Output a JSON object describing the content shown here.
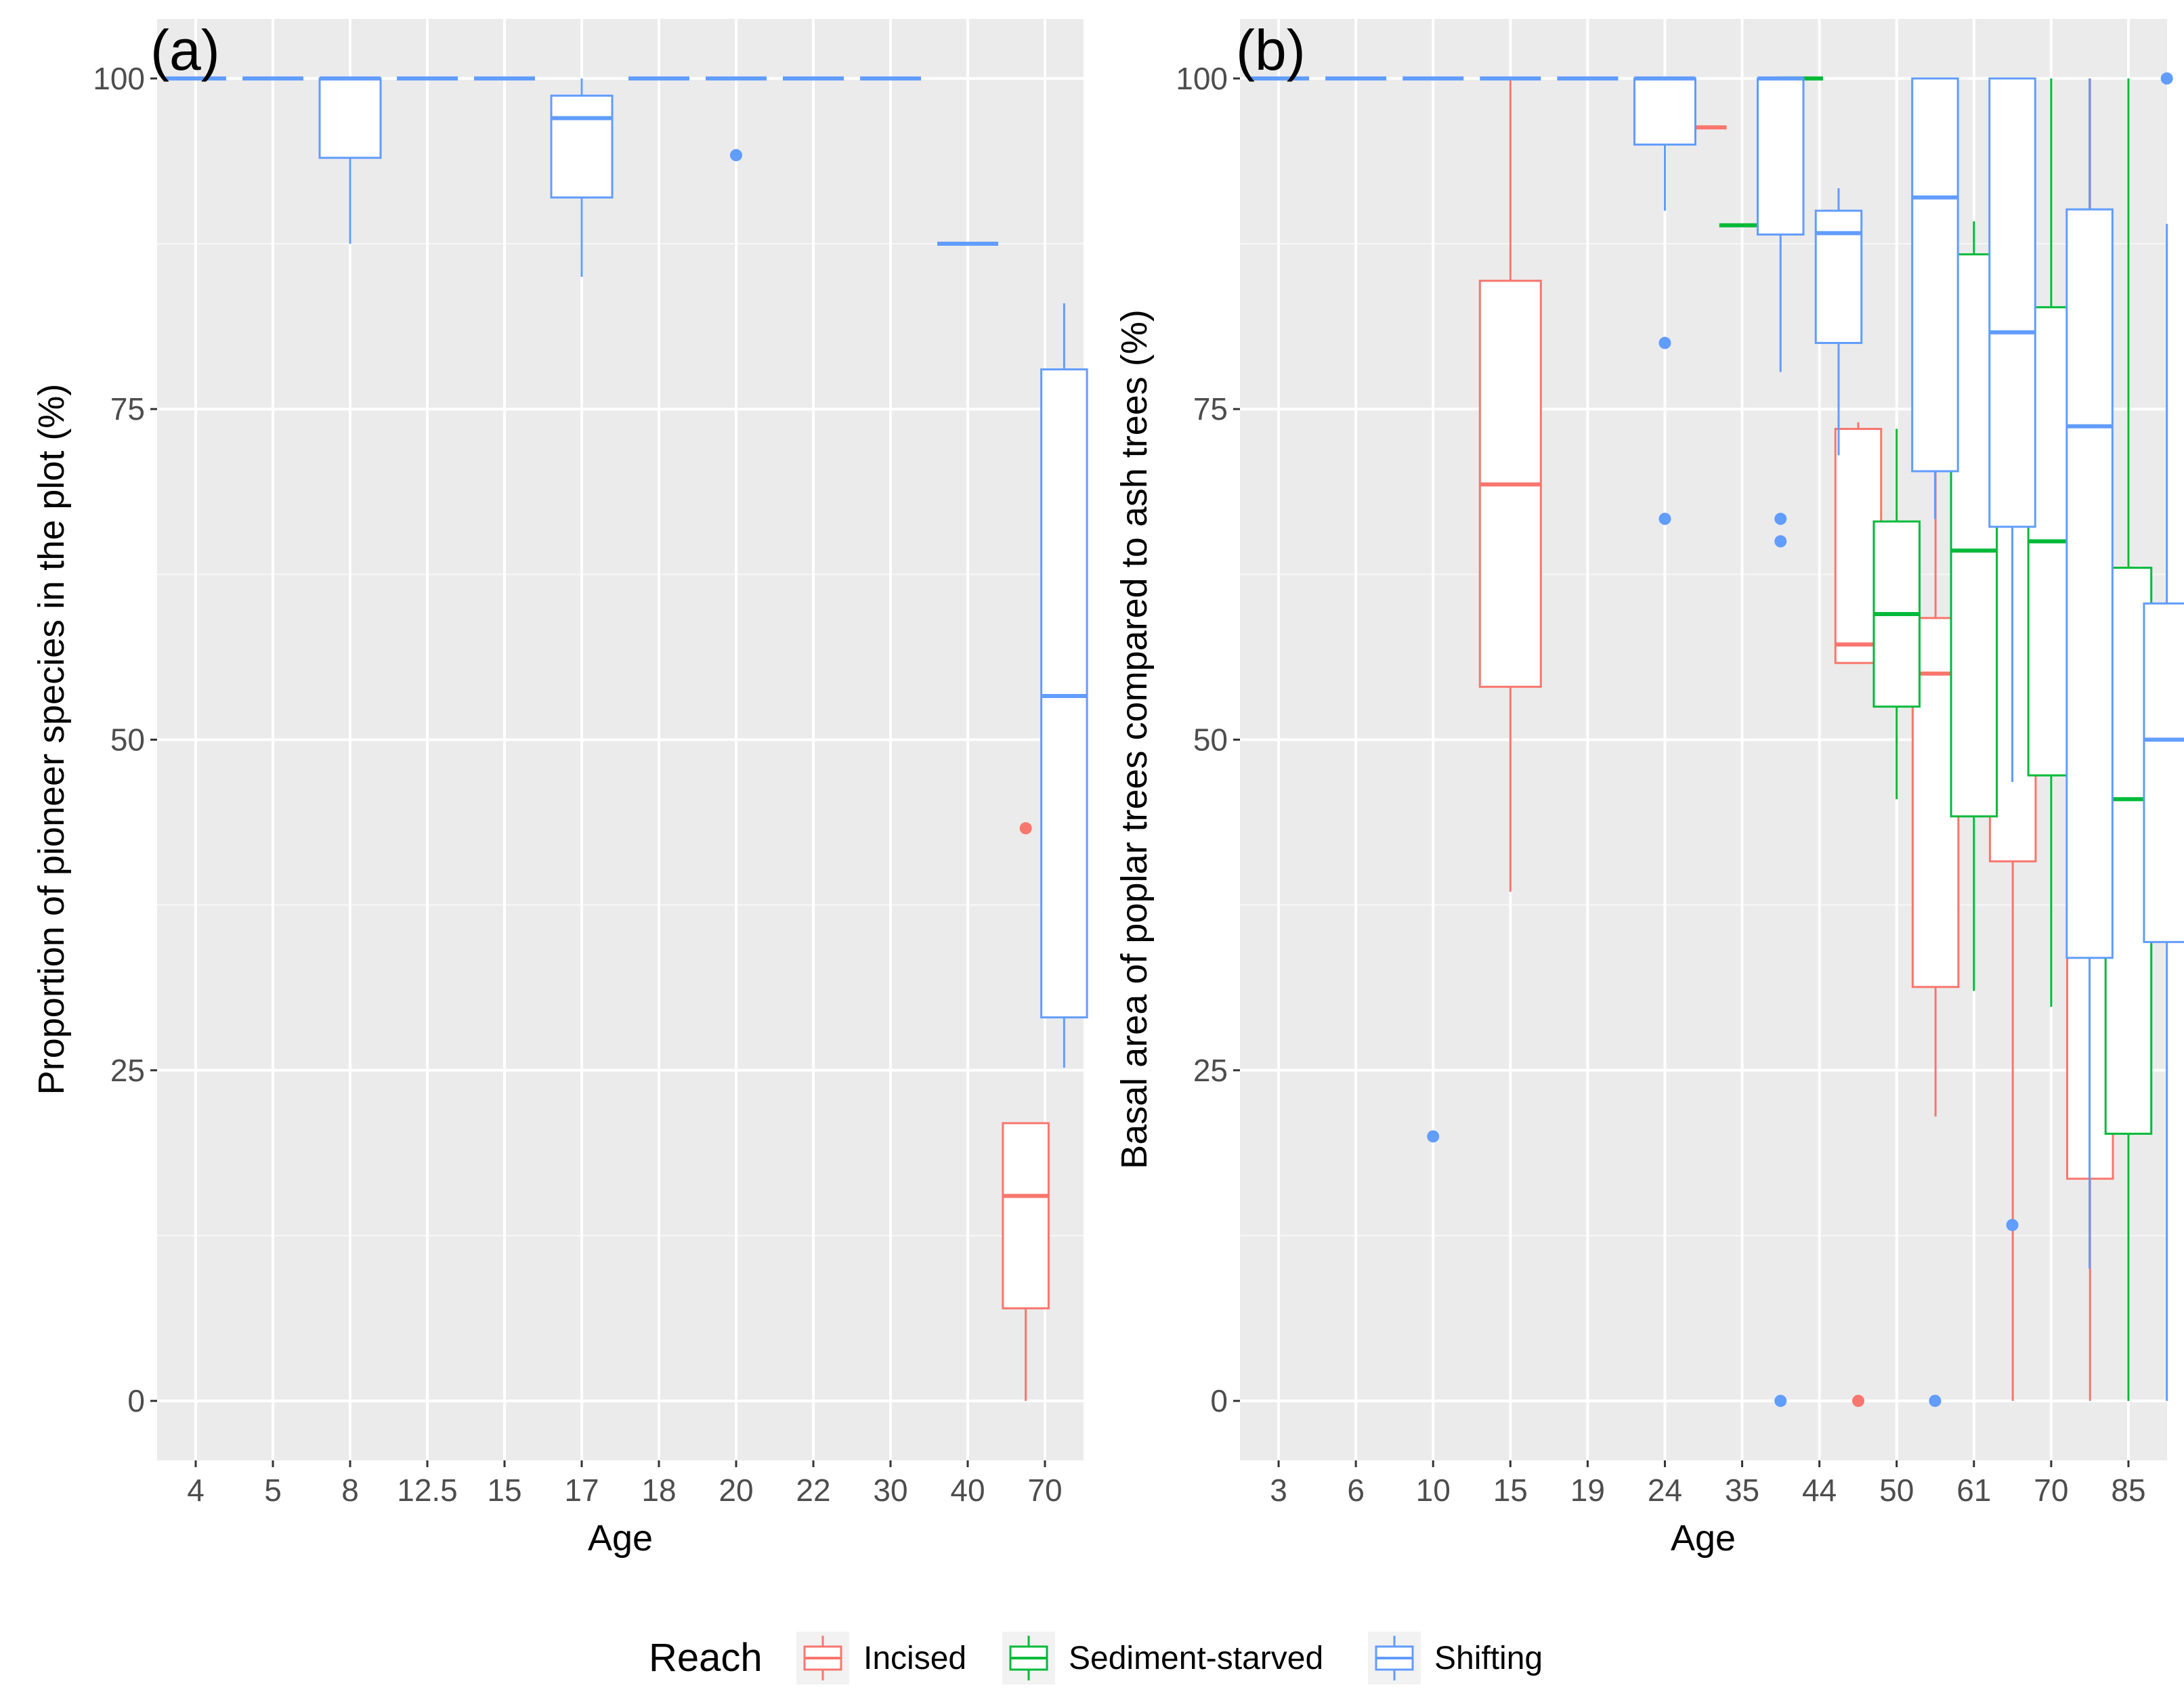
{
  "figure": {
    "legend_title": "Reach",
    "legend_items": [
      {
        "label": "Incised",
        "color": "#F8766D"
      },
      {
        "label": "Sediment-starved",
        "color": "#00BA38"
      },
      {
        "label": "Shifting",
        "color": "#619CFF"
      }
    ]
  },
  "chart_data": [
    {
      "type": "boxplot",
      "panel_label": "(a)",
      "xlabel": "Age",
      "ylabel": "Proportion of pioneer species in the plot (%)",
      "categories": [
        "4",
        "5",
        "8",
        "12.5",
        "15",
        "17",
        "18",
        "20",
        "22",
        "30",
        "40",
        "70"
      ],
      "ylim": [
        -4.5,
        104.5
      ],
      "yticks": [
        0,
        25,
        50,
        75,
        100
      ],
      "series": [
        {
          "name": "Incised",
          "boxes": [
            {
              "category": "70",
              "slot": 0,
              "n": 2,
              "lower": 0,
              "q1": 7,
              "median": 15.5,
              "q3": 21,
              "upper": 21,
              "outliers": [
                43.3
              ]
            }
          ]
        },
        {
          "name": "Sediment-starved",
          "boxes": []
        },
        {
          "name": "Shifting",
          "boxes": [
            {
              "category": "4",
              "slot": 0,
              "n": 1,
              "lower": 100,
              "q1": 100,
              "median": 100,
              "q3": 100,
              "upper": 100,
              "outliers": []
            },
            {
              "category": "5",
              "slot": 0,
              "n": 1,
              "lower": 100,
              "q1": 100,
              "median": 100,
              "q3": 100,
              "upper": 100,
              "outliers": []
            },
            {
              "category": "8",
              "slot": 0,
              "n": 1,
              "lower": 87.5,
              "q1": 94,
              "median": 100,
              "q3": 100,
              "upper": 100,
              "outliers": []
            },
            {
              "category": "12.5",
              "slot": 0,
              "n": 1,
              "lower": 100,
              "q1": 100,
              "median": 100,
              "q3": 100,
              "upper": 100,
              "outliers": []
            },
            {
              "category": "15",
              "slot": 0,
              "n": 1,
              "lower": 100,
              "q1": 100,
              "median": 100,
              "q3": 100,
              "upper": 100,
              "outliers": []
            },
            {
              "category": "17",
              "slot": 0,
              "n": 1,
              "lower": 85,
              "q1": 91,
              "median": 97,
              "q3": 98.7,
              "upper": 100,
              "outliers": []
            },
            {
              "category": "18",
              "slot": 0,
              "n": 1,
              "lower": 100,
              "q1": 100,
              "median": 100,
              "q3": 100,
              "upper": 100,
              "outliers": []
            },
            {
              "category": "20",
              "slot": 0,
              "n": 1,
              "lower": 100,
              "q1": 100,
              "median": 100,
              "q3": 100,
              "upper": 100,
              "outliers": [
                94.2
              ]
            },
            {
              "category": "22",
              "slot": 0,
              "n": 1,
              "lower": 100,
              "q1": 100,
              "median": 100,
              "q3": 100,
              "upper": 100,
              "outliers": []
            },
            {
              "category": "30",
              "slot": 0,
              "n": 1,
              "lower": 100,
              "q1": 100,
              "median": 100,
              "q3": 100,
              "upper": 100,
              "outliers": []
            },
            {
              "category": "40",
              "slot": 0,
              "n": 1,
              "lower": 87.5,
              "q1": 87.5,
              "median": 87.5,
              "q3": 87.5,
              "upper": 87.5,
              "outliers": []
            },
            {
              "category": "70",
              "slot": 1,
              "n": 2,
              "lower": 25.2,
              "q1": 29,
              "median": 53.3,
              "q3": 78,
              "upper": 83,
              "outliers": []
            }
          ]
        }
      ]
    },
    {
      "type": "boxplot",
      "panel_label": "(b)",
      "xlabel": "Age",
      "ylabel": "Basal area of poplar trees compared to ash trees (%)",
      "categories": [
        "3",
        "6",
        "10",
        "15",
        "19",
        "24",
        "35",
        "44",
        "50",
        "61",
        "70",
        "85"
      ],
      "ylim": [
        -4.5,
        104.5
      ],
      "yticks": [
        0,
        25,
        50,
        75,
        100
      ],
      "series": [
        {
          "name": "Incised",
          "boxes": [
            {
              "category": "15",
              "slot": 0,
              "n": 1,
              "lower": 38.5,
              "q1": 54,
              "median": 69.3,
              "q3": 84.7,
              "upper": 100,
              "outliers": []
            },
            {
              "category": "35",
              "slot": 0,
              "n": 3,
              "lower": 96.3,
              "q1": 96.3,
              "median": 96.3,
              "q3": 96.3,
              "upper": 96.3,
              "outliers": []
            },
            {
              "category": "50",
              "slot": 0,
              "n": 3,
              "lower": 55.8,
              "q1": 55.8,
              "median": 57.2,
              "q3": 73.5,
              "upper": 74,
              "outliers": [
                0
              ]
            },
            {
              "category": "61",
              "slot": 0,
              "n": 3,
              "lower": 21.5,
              "q1": 31.3,
              "median": 55,
              "q3": 59.2,
              "upper": 77,
              "outliers": []
            },
            {
              "category": "70",
              "slot": 0,
              "n": 3,
              "lower": 0,
              "q1": 40.8,
              "median": 81.2,
              "q3": 82.5,
              "upper": 83.5,
              "outliers": []
            },
            {
              "category": "85",
              "slot": 0,
              "n": 3,
              "lower": 0,
              "q1": 16.8,
              "median": 40.5,
              "q3": 60,
              "upper": 100,
              "outliers": []
            }
          ]
        },
        {
          "name": "Sediment-starved",
          "boxes": [
            {
              "category": "35",
              "slot": 1,
              "n": 3,
              "lower": 88.9,
              "q1": 88.9,
              "median": 88.9,
              "q3": 88.9,
              "upper": 88.9,
              "outliers": []
            },
            {
              "category": "44",
              "slot": 0,
              "n": 2,
              "lower": 100,
              "q1": 100,
              "median": 100,
              "q3": 100,
              "upper": 100,
              "outliers": []
            },
            {
              "category": "50",
              "slot": 1,
              "n": 3,
              "lower": 45.5,
              "q1": 52.5,
              "median": 59.5,
              "q3": 66.5,
              "upper": 73.5,
              "outliers": []
            },
            {
              "category": "61",
              "slot": 1,
              "n": 3,
              "lower": 31,
              "q1": 44.2,
              "median": 64.3,
              "q3": 86.7,
              "upper": 89.2,
              "outliers": []
            },
            {
              "category": "70",
              "slot": 1,
              "n": 3,
              "lower": 29.8,
              "q1": 47.3,
              "median": 65,
              "q3": 82.7,
              "upper": 100,
              "outliers": []
            },
            {
              "category": "85",
              "slot": 1,
              "n": 3,
              "lower": 0,
              "q1": 20.2,
              "median": 45.5,
              "q3": 63,
              "upper": 100,
              "outliers": []
            }
          ]
        },
        {
          "name": "Shifting",
          "boxes": [
            {
              "category": "3",
              "slot": 0,
              "n": 1,
              "lower": 100,
              "q1": 100,
              "median": 100,
              "q3": 100,
              "upper": 100,
              "outliers": []
            },
            {
              "category": "6",
              "slot": 0,
              "n": 1,
              "lower": 100,
              "q1": 100,
              "median": 100,
              "q3": 100,
              "upper": 100,
              "outliers": []
            },
            {
              "category": "10",
              "slot": 0,
              "n": 1,
              "lower": 100,
              "q1": 100,
              "median": 100,
              "q3": 100,
              "upper": 100,
              "outliers": [
                20
              ]
            },
            {
              "category": "15",
              "slot": 0,
              "n": 1,
              "lower": 100,
              "q1": 100,
              "median": 100,
              "q3": 100,
              "upper": 100,
              "outliers": []
            },
            {
              "category": "19",
              "slot": 0,
              "n": 1,
              "lower": 100,
              "q1": 100,
              "median": 100,
              "q3": 100,
              "upper": 100,
              "outliers": []
            },
            {
              "category": "24",
              "slot": 0,
              "n": 1,
              "lower": 90,
              "q1": 95,
              "median": 100,
              "q3": 100,
              "upper": 100,
              "outliers": [
                80,
                66.7
              ]
            },
            {
              "category": "35",
              "slot": 2,
              "n": 3,
              "lower": 77.8,
              "q1": 88.2,
              "median": 100,
              "q3": 100,
              "upper": 100,
              "outliers": [
                66.7,
                65,
                0
              ]
            },
            {
              "category": "44",
              "slot": 1,
              "n": 2,
              "lower": 71.5,
              "q1": 80,
              "median": 88.3,
              "q3": 90,
              "upper": 91.7,
              "outliers": []
            },
            {
              "category": "50",
              "slot": 2,
              "n": 3,
              "lower": 66.7,
              "q1": 70.3,
              "median": 91,
              "q3": 100,
              "upper": 100,
              "outliers": [
                0
              ]
            },
            {
              "category": "61",
              "slot": 2,
              "n": 3,
              "lower": 46.8,
              "q1": 66.1,
              "median": 80.8,
              "q3": 100,
              "upper": 100,
              "outliers": [
                13.3
              ]
            },
            {
              "category": "70",
              "slot": 2,
              "n": 3,
              "lower": 10,
              "q1": 33.5,
              "median": 73.7,
              "q3": 90.1,
              "upper": 100,
              "outliers": []
            },
            {
              "category": "85",
              "slot": 2,
              "n": 3,
              "lower": 0,
              "q1": 34.7,
              "median": 50,
              "q3": 60.3,
              "upper": 89,
              "outliers": [
                100
              ]
            }
          ]
        }
      ]
    }
  ]
}
